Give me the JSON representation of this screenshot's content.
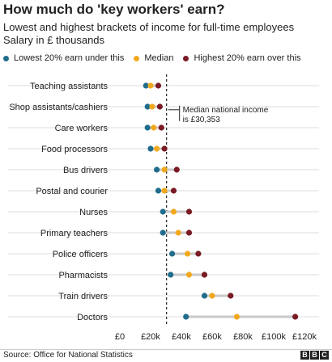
{
  "title": "How much do 'key workers' earn?",
  "subtitle1": "Lowest and highest brackets of income for full-time employees",
  "subtitle2": "Salary in £ thousands",
  "colors": {
    "low": "#1f6c8c",
    "median": "#f2a81d",
    "high": "#7a1a24",
    "range_line": "#c9c9c9",
    "grid": "#dddddd",
    "reference_line": "#222222"
  },
  "legend": [
    {
      "key": "low",
      "label": "Lowest 20% earn under this"
    },
    {
      "key": "median",
      "label": "Median"
    },
    {
      "key": "high",
      "label": "Highest 20% earn over this"
    }
  ],
  "annotation": {
    "line1": "Median national income",
    "line2": "is £30,353"
  },
  "source": "Source: Office for National Statistics",
  "brand": [
    "B",
    "B",
    "C"
  ],
  "chart_data": {
    "type": "dot-range",
    "xlim": [
      0,
      120
    ],
    "x_ticks": [
      {
        "value": 0,
        "label": "£0"
      },
      {
        "value": 20,
        "label": "£20k"
      },
      {
        "value": 40,
        "label": "£40k"
      },
      {
        "value": 60,
        "label": "£60k"
      },
      {
        "value": 80,
        "label": "£80k"
      },
      {
        "value": 100,
        "label": "£100k"
      },
      {
        "value": 120,
        "label": "£120k"
      }
    ],
    "reference_value": 30.353,
    "series_order": [
      "low",
      "median",
      "high"
    ],
    "categories": [
      {
        "name": "Teaching assistants",
        "low": 17,
        "median": 20,
        "high": 25
      },
      {
        "name": "Shop assistants/cashiers",
        "low": 18,
        "median": 21,
        "high": 26
      },
      {
        "name": "Care workers",
        "low": 18,
        "median": 22,
        "high": 27
      },
      {
        "name": "Food processors",
        "low": 20,
        "median": 24,
        "high": 29
      },
      {
        "name": "Bus drivers",
        "low": 24,
        "median": 29,
        "high": 37
      },
      {
        "name": "Postal and courier",
        "low": 25,
        "median": 29,
        "high": 35
      },
      {
        "name": "Nurses",
        "low": 28,
        "median": 35,
        "high": 45
      },
      {
        "name": "Primary teachers",
        "low": 28,
        "median": 38,
        "high": 45
      },
      {
        "name": "Police officers",
        "low": 34,
        "median": 44,
        "high": 51
      },
      {
        "name": "Pharmacists",
        "low": 33,
        "median": 45,
        "high": 55
      },
      {
        "name": "Train drivers",
        "low": 55,
        "median": 60,
        "high": 72
      },
      {
        "name": "Doctors",
        "low": 43,
        "median": 76,
        "high": 114
      }
    ]
  }
}
